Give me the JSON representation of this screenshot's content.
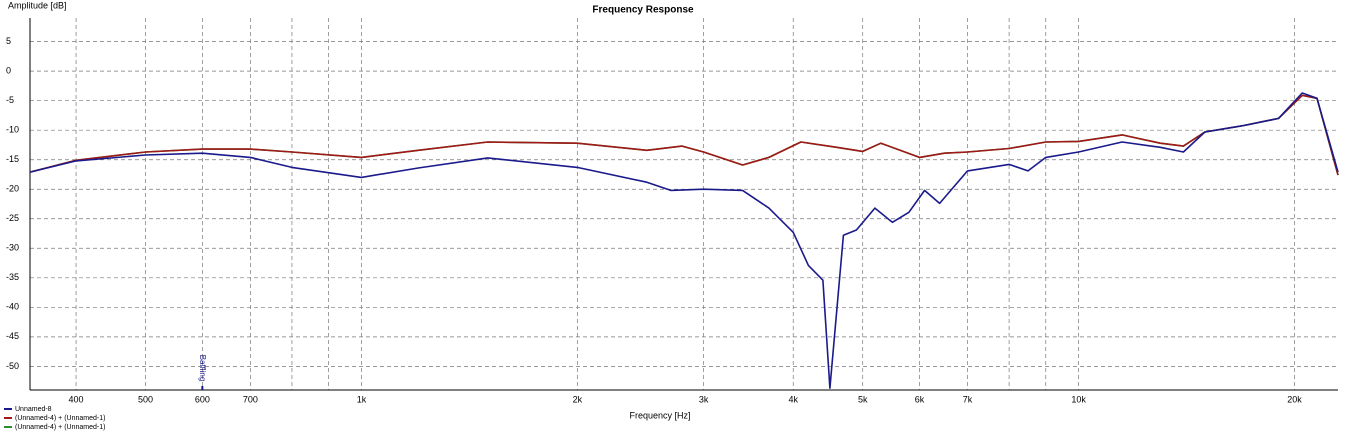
{
  "chart_data": {
    "type": "line",
    "title": "Frequency Response",
    "y_label": "Amplitude [dB]",
    "x_label": "Frequency [Hz]",
    "log_x": true,
    "grid": true,
    "legend_position": "bottom-left",
    "xlim": [
      345,
      23000
    ],
    "ylim": [
      -54,
      9
    ],
    "xticks": [
      400,
      500,
      600,
      700,
      {
        "value": 1000,
        "label": "1k"
      },
      {
        "value": 2000,
        "label": "2k"
      },
      {
        "value": 3000,
        "label": "3k"
      },
      {
        "value": 4000,
        "label": "4k"
      },
      {
        "value": 5000,
        "label": "5k"
      },
      {
        "value": 6000,
        "label": "6k"
      },
      {
        "value": 7000,
        "label": "7k"
      },
      {
        "value": 10000,
        "label": "10k"
      },
      {
        "value": 20000,
        "label": "20k"
      }
    ],
    "xminor": [
      800,
      900,
      8000,
      9000
    ],
    "yticks": [
      5,
      0,
      -5,
      -10,
      -15,
      -20,
      -25,
      -30,
      -35,
      -40,
      -45,
      -50
    ],
    "annotations": [
      {
        "text": "Baffling",
        "x": 600
      }
    ],
    "series": [
      {
        "name": "(Unnamed-4) + (Unnamed-1)",
        "color": "#2e8b2e",
        "x": [
          345,
          400,
          500,
          600,
          700,
          800,
          1000,
          1200,
          1500,
          2000,
          2500,
          2800,
          3000,
          3400,
          3700,
          4100,
          4600,
          5000,
          5300,
          6000,
          6500,
          7000,
          8000,
          9000,
          10000,
          11500,
          13000,
          14000,
          15000,
          17000,
          19000,
          20500,
          21500,
          23000
        ],
        "values": [
          -17.1,
          -15.1,
          -13.7,
          -13.2,
          -13.2,
          -13.7,
          -14.6,
          -13.4,
          -12.0,
          -12.2,
          -13.4,
          -12.7,
          -13.7,
          -15.9,
          -14.6,
          -12.0,
          -12.9,
          -13.6,
          -12.2,
          -14.6,
          -13.9,
          -13.7,
          -13.1,
          -12.0,
          -11.9,
          -10.8,
          -12.2,
          -12.7,
          -10.3,
          -9.2,
          -8.0,
          -4.1,
          -4.6,
          -17.6
        ]
      },
      {
        "name": "(Unnamed-4) + (Unnamed-1)",
        "color": "#a01818",
        "x": [
          345,
          400,
          500,
          600,
          700,
          800,
          1000,
          1200,
          1500,
          2000,
          2500,
          2800,
          3000,
          3400,
          3700,
          4100,
          4600,
          5000,
          5300,
          6000,
          6500,
          7000,
          8000,
          9000,
          10000,
          11500,
          13000,
          14000,
          15000,
          17000,
          19000,
          20500,
          21500,
          23000
        ],
        "values": [
          -17.1,
          -15.1,
          -13.7,
          -13.2,
          -13.2,
          -13.7,
          -14.6,
          -13.4,
          -12.0,
          -12.2,
          -13.4,
          -12.7,
          -13.7,
          -15.9,
          -14.6,
          -12.0,
          -12.9,
          -13.6,
          -12.2,
          -14.6,
          -13.9,
          -13.7,
          -13.1,
          -12.0,
          -11.9,
          -10.8,
          -12.2,
          -12.7,
          -10.3,
          -9.2,
          -8.0,
          -4.1,
          -4.6,
          -17.6
        ]
      },
      {
        "name": "Unnamed-8",
        "color": "#1a1a8c",
        "x": [
          345,
          400,
          500,
          600,
          700,
          800,
          1000,
          1200,
          1500,
          2000,
          2500,
          2700,
          3000,
          3400,
          3700,
          4000,
          4200,
          4400,
          4500,
          4700,
          4900,
          5200,
          5500,
          5800,
          6100,
          6400,
          7000,
          8000,
          8500,
          9000,
          10000,
          11500,
          13000,
          14000,
          15000,
          17000,
          19000,
          20500,
          21500,
          23000
        ],
        "values": [
          -17.1,
          -15.2,
          -14.2,
          -13.9,
          -14.6,
          -16.3,
          -18.0,
          -16.4,
          -14.7,
          -16.3,
          -18.8,
          -20.2,
          -20.0,
          -20.2,
          -23.2,
          -27.3,
          -32.9,
          -35.4,
          -53.7,
          -27.8,
          -26.9,
          -23.2,
          -25.6,
          -23.9,
          -20.2,
          -22.4,
          -16.9,
          -15.8,
          -16.9,
          -14.6,
          -13.7,
          -12.0,
          -12.9,
          -13.7,
          -10.3,
          -9.2,
          -8.0,
          -3.7,
          -4.6,
          -17.1
        ]
      }
    ]
  }
}
